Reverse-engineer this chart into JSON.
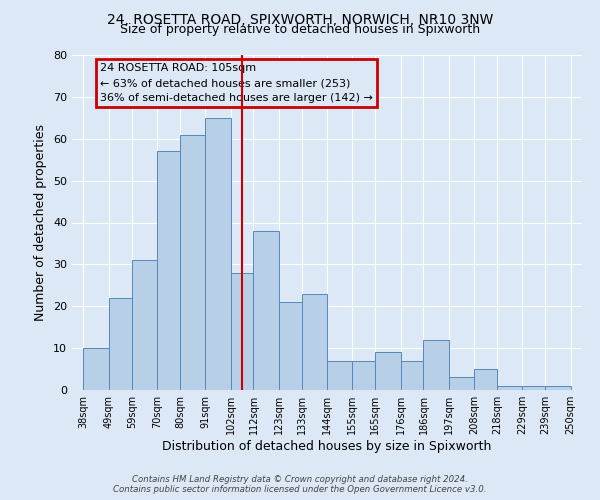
{
  "title": "24, ROSETTA ROAD, SPIXWORTH, NORWICH, NR10 3NW",
  "subtitle": "Size of property relative to detached houses in Spixworth",
  "xlabel": "Distribution of detached houses by size in Spixworth",
  "ylabel": "Number of detached properties",
  "bar_left_edges": [
    38,
    49,
    59,
    70,
    80,
    91,
    102,
    112,
    123,
    133,
    144,
    155,
    165,
    176,
    186,
    197,
    208,
    218,
    229,
    239
  ],
  "bar_heights": [
    10,
    22,
    31,
    57,
    61,
    65,
    28,
    38,
    21,
    23,
    7,
    7,
    9,
    7,
    12,
    3,
    5,
    1,
    1,
    1
  ],
  "bar_widths": [
    11,
    10,
    11,
    10,
    11,
    11,
    10,
    11,
    10,
    11,
    11,
    10,
    11,
    10,
    11,
    11,
    10,
    11,
    10,
    11
  ],
  "tick_labels": [
    "38sqm",
    "49sqm",
    "59sqm",
    "70sqm",
    "80sqm",
    "91sqm",
    "102sqm",
    "112sqm",
    "123sqm",
    "133sqm",
    "144sqm",
    "155sqm",
    "165sqm",
    "176sqm",
    "186sqm",
    "197sqm",
    "208sqm",
    "218sqm",
    "229sqm",
    "239sqm",
    "250sqm"
  ],
  "tick_positions": [
    38,
    49,
    59,
    70,
    80,
    91,
    102,
    112,
    123,
    133,
    144,
    155,
    165,
    176,
    186,
    197,
    208,
    218,
    229,
    239,
    250
  ],
  "vline_x": 107,
  "vline_color": "#cc0000",
  "bar_facecolor": "#b8cfe8",
  "bar_edgecolor": "#5588bb",
  "ylim": [
    0,
    80
  ],
  "xlim": [
    33,
    255
  ],
  "yticks": [
    0,
    10,
    20,
    30,
    40,
    50,
    60,
    70,
    80
  ],
  "annotation_title": "24 ROSETTA ROAD: 105sqm",
  "annotation_line1": "← 63% of detached houses are smaller (253)",
  "annotation_line2": "36% of semi-detached houses are larger (142) →",
  "annotation_box_color": "#cc0000",
  "bg_color": "#dce8f5",
  "footer1": "Contains HM Land Registry data © Crown copyright and database right 2024.",
  "footer2": "Contains public sector information licensed under the Open Government Licence v3.0."
}
